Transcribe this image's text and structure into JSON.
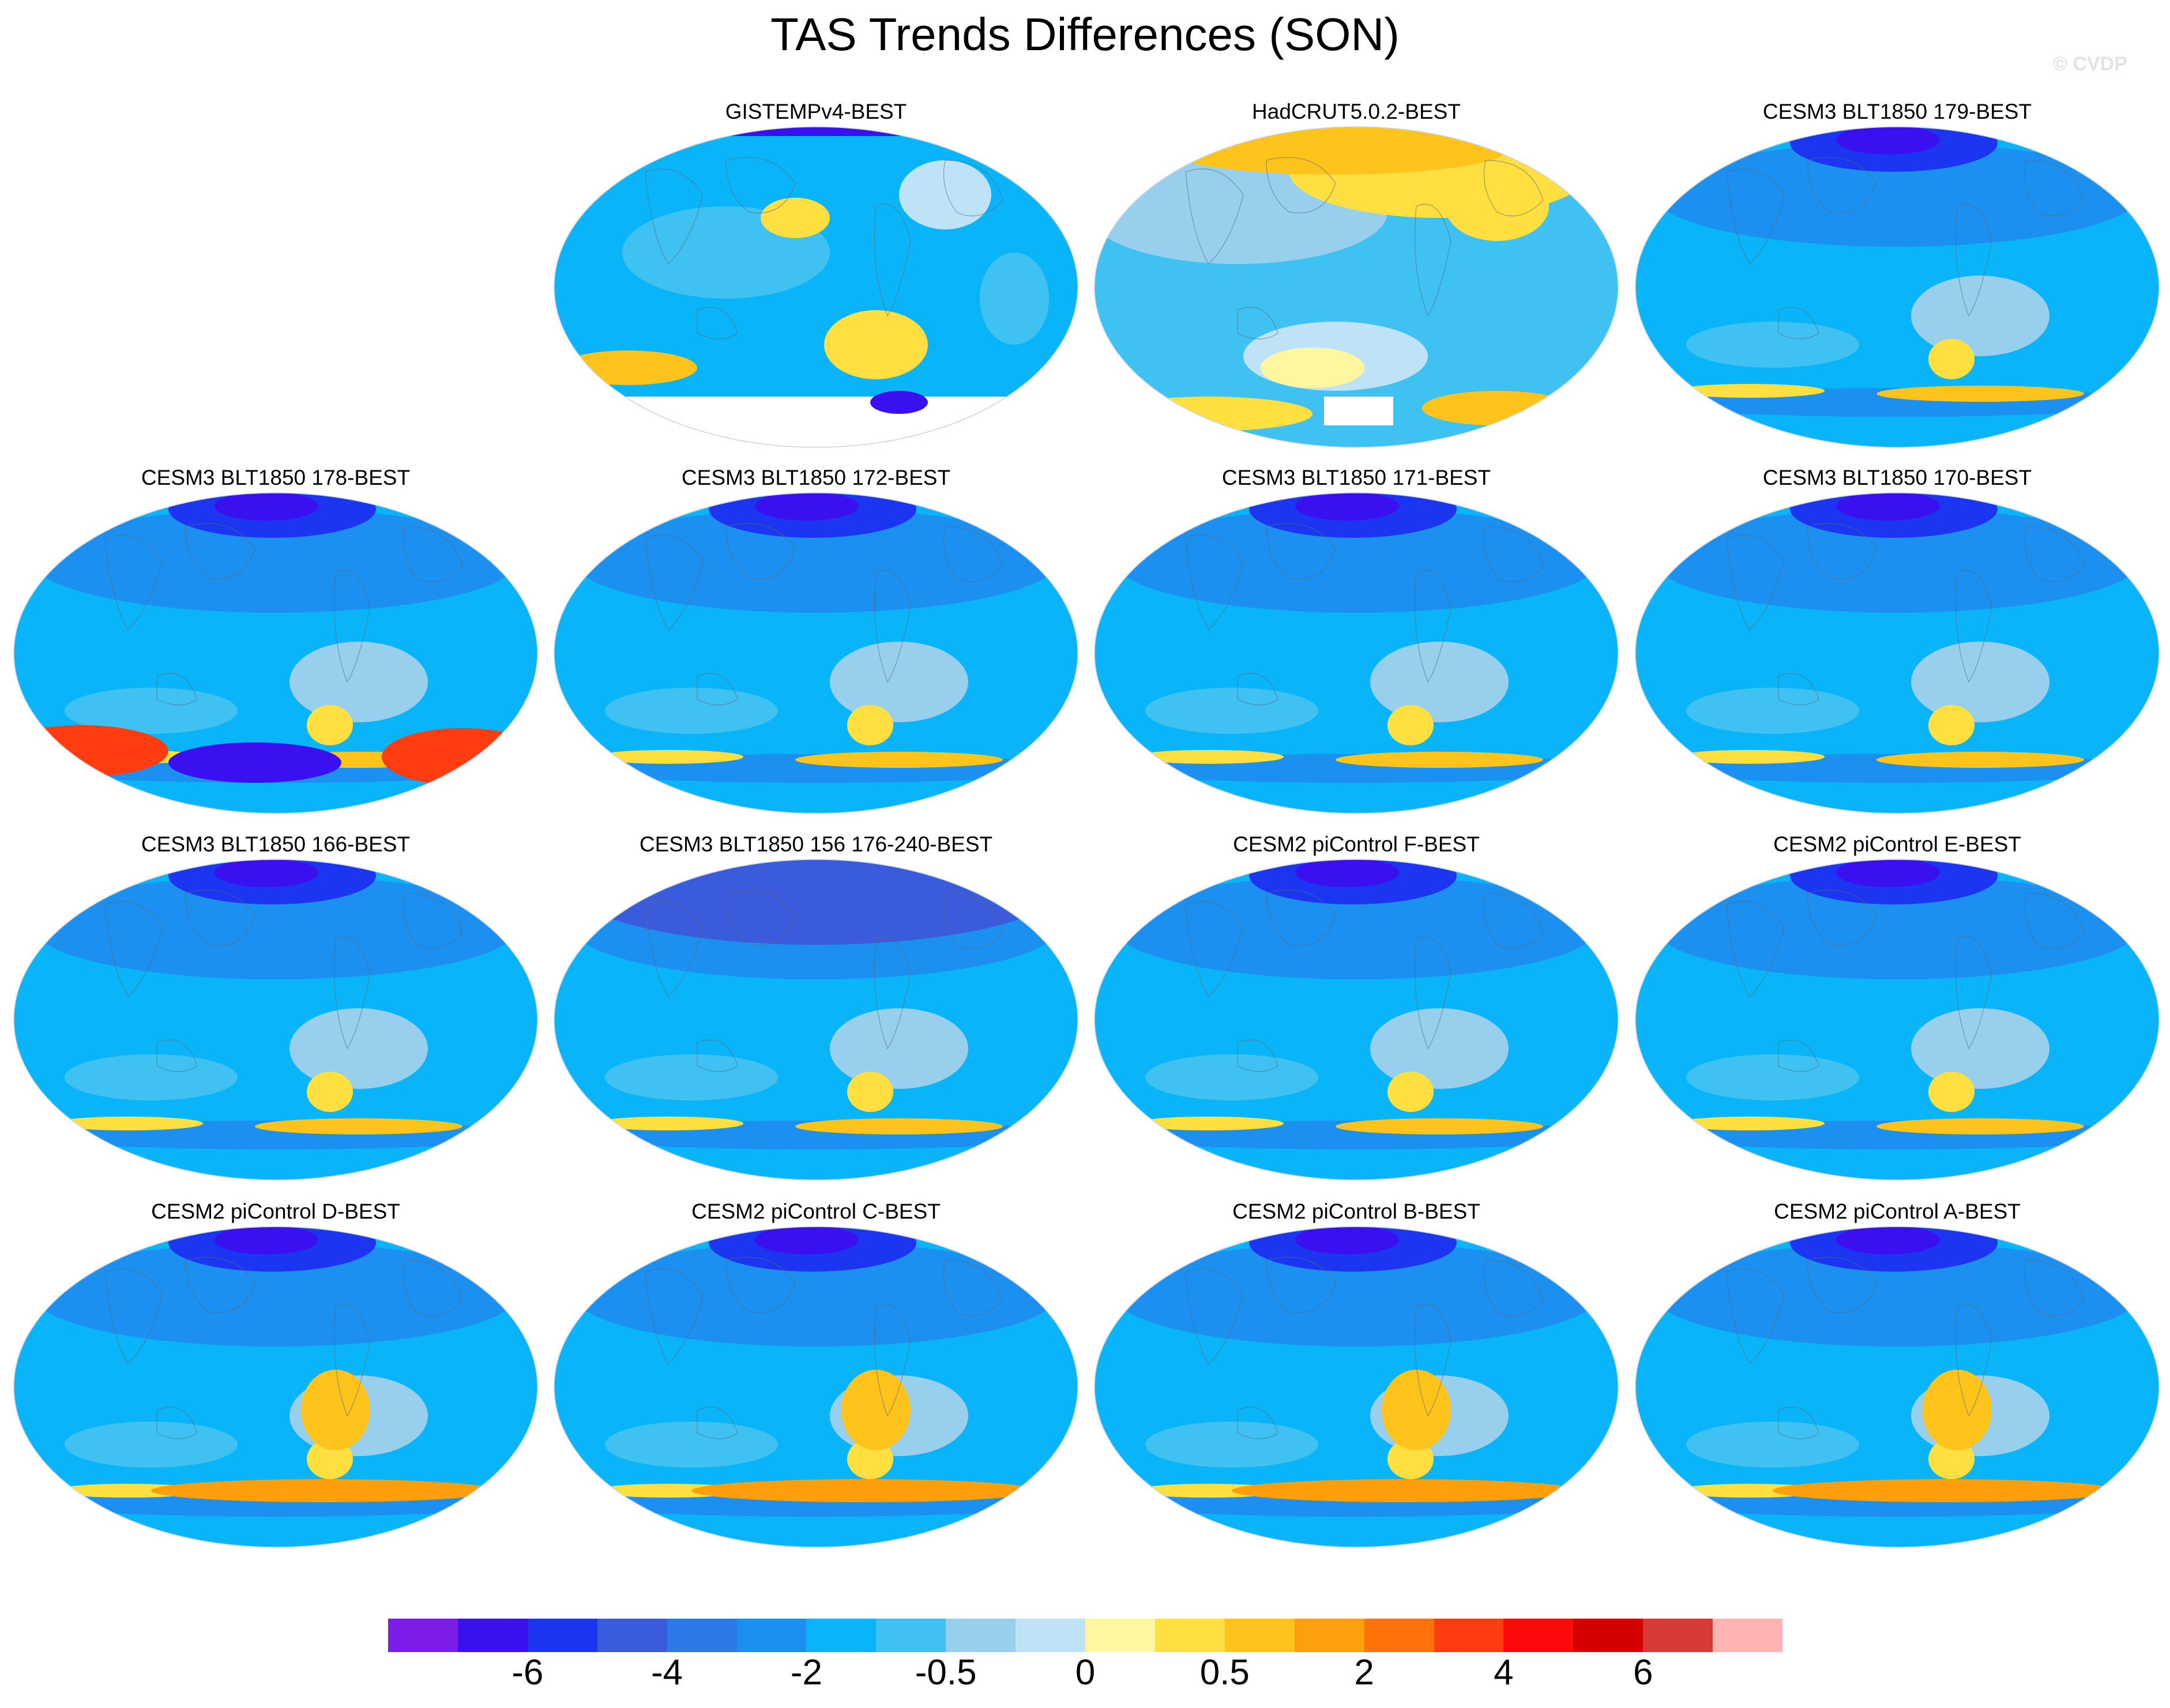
{
  "title": "TAS Trends Differences (SON)",
  "watermark": "© CVDP",
  "colors": {
    "ocean_base": "#0ab4f8",
    "land_outline": "#5a6a7a"
  },
  "colorbar": {
    "colors": [
      "#7b1ce8",
      "#3a0ff0",
      "#1b35f0",
      "#3a5bdb",
      "#2d7ae6",
      "#1b90f0",
      "#0ab4f8",
      "#3fc1f2",
      "#98cfec",
      "#bfe3f6",
      "#fff6a0",
      "#ffe040",
      "#ffc41b",
      "#ff9f0b",
      "#ff720a",
      "#ff3d10",
      "#ff0a0a",
      "#d40000",
      "#d83a3a",
      "#ffb3b3"
    ],
    "tick_labels": [
      {
        "text": "-6",
        "boundary": 2
      },
      {
        "text": "-4",
        "boundary": 4
      },
      {
        "text": "-2",
        "boundary": 6
      },
      {
        "text": "-0.5",
        "boundary": 8
      },
      {
        "text": "0",
        "boundary": 10
      },
      {
        "text": "0.5",
        "boundary": 12
      },
      {
        "text": "2",
        "boundary": 14
      },
      {
        "text": "4",
        "boundary": 16
      },
      {
        "text": "6",
        "boundary": 18
      }
    ]
  },
  "panels": [
    {
      "title": "GISTEMPv4-BEST",
      "col": 1,
      "row": 0,
      "variant": "gistemp"
    },
    {
      "title": "HadCRUT5.0.2-BEST",
      "col": 2,
      "row": 0,
      "variant": "hadcrut"
    },
    {
      "title": "CESM3 BLT1850 179-BEST",
      "col": 3,
      "row": 0,
      "variant": "model"
    },
    {
      "title": "CESM3 BLT1850 178-BEST",
      "col": 0,
      "row": 1,
      "variant": "model-strong"
    },
    {
      "title": "CESM3 BLT1850 172-BEST",
      "col": 1,
      "row": 1,
      "variant": "model"
    },
    {
      "title": "CESM3 BLT1850 171-BEST",
      "col": 2,
      "row": 1,
      "variant": "model"
    },
    {
      "title": "CESM3 BLT1850 170-BEST",
      "col": 3,
      "row": 1,
      "variant": "model"
    },
    {
      "title": "CESM3 BLT1850 166-BEST",
      "col": 0,
      "row": 2,
      "variant": "model"
    },
    {
      "title": "CESM3 BLT1850 156 176-240-BEST",
      "col": 1,
      "row": 2,
      "variant": "model-cold"
    },
    {
      "title": "CESM2 piControl F-BEST",
      "col": 2,
      "row": 2,
      "variant": "model"
    },
    {
      "title": "CESM2 piControl E-BEST",
      "col": 3,
      "row": 2,
      "variant": "model"
    },
    {
      "title": "CESM2 piControl D-BEST",
      "col": 0,
      "row": 3,
      "variant": "pictrl"
    },
    {
      "title": "CESM2 piControl C-BEST",
      "col": 1,
      "row": 3,
      "variant": "pictrl"
    },
    {
      "title": "CESM2 piControl B-BEST",
      "col": 2,
      "row": 3,
      "variant": "pictrl"
    },
    {
      "title": "CESM2 piControl A-BEST",
      "col": 3,
      "row": 3,
      "variant": "pictrl"
    }
  ]
}
